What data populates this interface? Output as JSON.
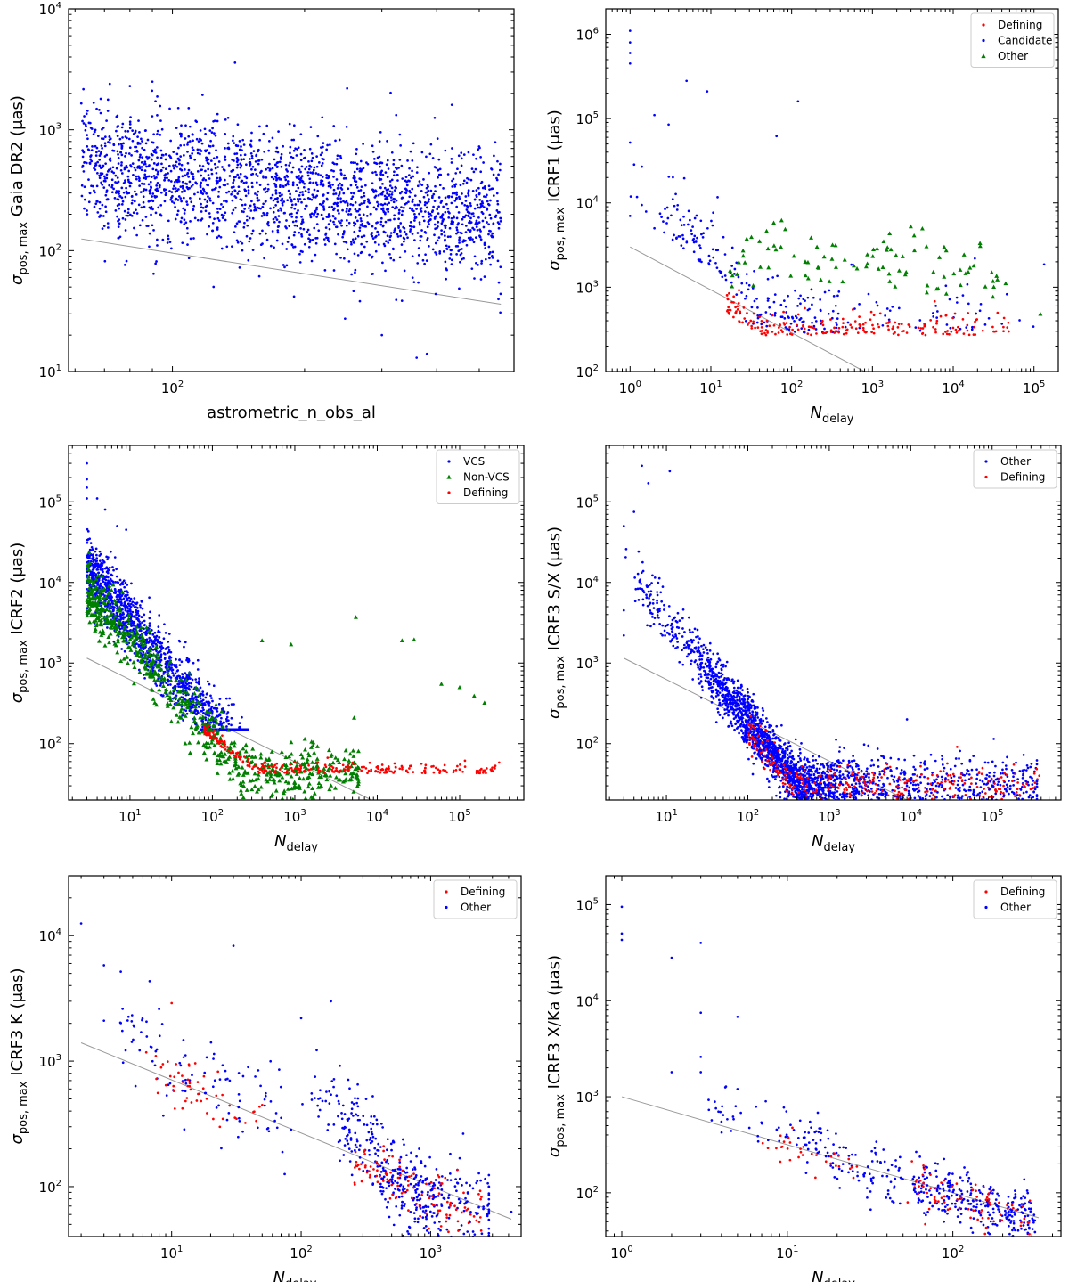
{
  "colors": {
    "defining": "#ff0000",
    "candidate": "#0000ff",
    "other_green": "#008000",
    "vcs": "#0000ff",
    "nonvcs": "#008000",
    "fit_line": "#999999"
  },
  "chart_data": [
    {
      "id": "gaia",
      "type": "scatter",
      "xlabel": "astrometric_n_obs_al",
      "ylabel": "σpos, max Gaia DR2 (μas)",
      "xscale": "log",
      "yscale": "log",
      "xlim": [
        58,
        600
      ],
      "ylim": [
        10,
        10000
      ],
      "xticks": [
        {
          "v": 100,
          "label": "10",
          "exp": "2"
        }
      ],
      "yticks": [
        {
          "v": 10,
          "label": "10",
          "exp": "1"
        },
        {
          "v": 100,
          "label": "10",
          "exp": "2"
        },
        {
          "v": 1000,
          "label": "10",
          "exp": "3"
        },
        {
          "v": 10000,
          "label": "10",
          "exp": "4"
        }
      ],
      "legend": null,
      "fit_line": [
        [
          62,
          125
        ],
        [
          560,
          36
        ]
      ],
      "series": [
        {
          "color_key": "candidate",
          "marker": "dot",
          "n": 2200,
          "x_range": [
            62,
            560
          ],
          "y_center": [
            500,
            180
          ],
          "y_spread": 0.42,
          "seed": 11,
          "extra": [
            [
              62,
              1650
            ],
            [
              72,
              2400
            ],
            [
              80,
              2300
            ],
            [
              90,
              2500
            ],
            [
              70,
              160
            ],
            [
              380,
              14
            ],
            [
              360,
              13
            ],
            [
              300,
              20
            ],
            [
              250,
              2200
            ],
            [
              510,
              330
            ],
            [
              560,
              185
            ],
            [
              530,
              260
            ]
          ]
        }
      ]
    },
    {
      "id": "icrf1",
      "type": "scatter",
      "xlabel": "N",
      "xlabel_sub": "delay",
      "ylabel": "σpos, max ICRF1 (μas)",
      "xscale": "log",
      "yscale": "log",
      "xlim": [
        0.5,
        200000
      ],
      "ylim": [
        100,
        2000000
      ],
      "xticks": [
        {
          "v": 1,
          "label": "10",
          "exp": "0"
        },
        {
          "v": 10,
          "label": "10",
          "exp": "1"
        },
        {
          "v": 100,
          "label": "10",
          "exp": "2"
        },
        {
          "v": 1000,
          "label": "10",
          "exp": "3"
        },
        {
          "v": 10000,
          "label": "10",
          "exp": "4"
        },
        {
          "v": 100000,
          "label": "10",
          "exp": "5"
        }
      ],
      "yticks": [
        {
          "v": 100,
          "label": "10",
          "exp": "2"
        },
        {
          "v": 1000,
          "label": "10",
          "exp": "3"
        },
        {
          "v": 10000,
          "label": "10",
          "exp": "4"
        },
        {
          "v": 100000,
          "label": "10",
          "exp": "5"
        },
        {
          "v": 1000000,
          "label": "10",
          "exp": "6"
        }
      ],
      "legend": [
        {
          "label": "Defining",
          "color_key": "defining",
          "marker": "dot"
        },
        {
          "label": "Candidate",
          "color_key": "candidate",
          "marker": "dot"
        },
        {
          "label": "Other",
          "color_key": "other_green",
          "marker": "tri"
        }
      ],
      "fit_line": [
        [
          1,
          3000
        ],
        [
          800,
          100
        ]
      ],
      "series": [
        {
          "color_key": "candidate",
          "marker": "dot",
          "n": 260,
          "curve": "icrf1cand",
          "seed": 21,
          "extra": [
            [
              1,
              1100000
            ],
            [
              1,
              800000
            ],
            [
              1,
              600000
            ],
            [
              1,
              450000
            ],
            [
              1,
              52000
            ],
            [
              5,
              280000
            ],
            [
              9,
              210000
            ],
            [
              120,
              160000
            ],
            [
              2,
              110000
            ],
            [
              3,
              85000
            ],
            [
              65,
              62000
            ],
            [
              1,
              7000
            ],
            [
              2,
              5000
            ],
            [
              4,
              4000
            ]
          ]
        },
        {
          "color_key": "defining",
          "marker": "dot",
          "n": 210,
          "curve": "icrf1def",
          "seed": 22
        },
        {
          "color_key": "other_green",
          "marker": "tri",
          "n": 95,
          "curve": "icrf1other",
          "seed": 23,
          "extra": [
            [
              120000,
              480
            ],
            [
              75,
              6200
            ],
            [
              60,
              5800
            ],
            [
              40,
              3500
            ]
          ]
        }
      ]
    },
    {
      "id": "icrf2",
      "type": "scatter",
      "xlabel": "N",
      "xlabel_sub": "delay",
      "ylabel": "σpos, max ICRF2 (μas)",
      "xscale": "log",
      "yscale": "log",
      "xlim": [
        1.8,
        600000
      ],
      "ylim": [
        20,
        500000
      ],
      "xticks": [
        {
          "v": 10,
          "label": "10",
          "exp": "1"
        },
        {
          "v": 100,
          "label": "10",
          "exp": "2"
        },
        {
          "v": 1000,
          "label": "10",
          "exp": "3"
        },
        {
          "v": 10000,
          "label": "10",
          "exp": "4"
        },
        {
          "v": 100000,
          "label": "10",
          "exp": "5"
        }
      ],
      "yticks": [
        {
          "v": 100,
          "label": "10",
          "exp": "2"
        },
        {
          "v": 1000,
          "label": "10",
          "exp": "3"
        },
        {
          "v": 10000,
          "label": "10",
          "exp": "4"
        },
        {
          "v": 100000,
          "label": "10",
          "exp": "5"
        }
      ],
      "legend": [
        {
          "label": "VCS",
          "color_key": "vcs",
          "marker": "dot"
        },
        {
          "label": "Non-VCS",
          "color_key": "nonvcs",
          "marker": "tri"
        },
        {
          "label": "Defining",
          "color_key": "defining",
          "marker": "dot"
        }
      ],
      "fit_line": [
        [
          3,
          1150
        ],
        [
          8500,
          20
        ]
      ],
      "series": [
        {
          "color_key": "vcs",
          "marker": "dot",
          "n": 1500,
          "curve": "icrf2vcs",
          "seed": 31,
          "extra": [
            [
              3,
              300000
            ],
            [
              3,
              190000
            ],
            [
              3,
              150000
            ],
            [
              3,
              110000
            ],
            [
              4,
              110000
            ],
            [
              5,
              80000
            ],
            [
              7,
              50000
            ],
            [
              9,
              45000
            ]
          ]
        },
        {
          "color_key": "nonvcs",
          "marker": "tri",
          "n": 700,
          "curve": "icrf2non",
          "seed": 32,
          "extra": [
            [
              400,
              1900
            ],
            [
              900,
              1700
            ],
            [
              5500,
              3700
            ],
            [
              20000,
              1900
            ],
            [
              28000,
              1950
            ],
            [
              60000,
              550
            ],
            [
              100000,
              500
            ],
            [
              200000,
              320
            ],
            [
              150000,
              390
            ]
          ]
        },
        {
          "color_key": "defining",
          "marker": "dot",
          "n": 300,
          "curve": "icrf2def",
          "seed": 33
        }
      ]
    },
    {
      "id": "icrf3sx",
      "type": "scatter",
      "xlabel": "N",
      "xlabel_sub": "delay",
      "ylabel": "σpos, max ICRF3 S/X (μas)",
      "xscale": "log",
      "yscale": "log",
      "xlim": [
        1.8,
        700000
      ],
      "ylim": [
        20,
        500000
      ],
      "xticks": [
        {
          "v": 10,
          "label": "10",
          "exp": "1"
        },
        {
          "v": 100,
          "label": "10",
          "exp": "2"
        },
        {
          "v": 1000,
          "label": "10",
          "exp": "3"
        },
        {
          "v": 10000,
          "label": "10",
          "exp": "4"
        },
        {
          "v": 100000,
          "label": "10",
          "exp": "5"
        }
      ],
      "yticks": [
        {
          "v": 100,
          "label": "10",
          "exp": "2"
        },
        {
          "v": 1000,
          "label": "10",
          "exp": "3"
        },
        {
          "v": 10000,
          "label": "10",
          "exp": "4"
        },
        {
          "v": 100000,
          "label": "10",
          "exp": "5"
        }
      ],
      "legend": [
        {
          "label": "Other",
          "color_key": "candidate",
          "marker": "dot"
        },
        {
          "label": "Defining",
          "color_key": "defining",
          "marker": "dot"
        }
      ],
      "fit_line": [
        [
          3,
          1150
        ],
        [
          9000,
          20
        ]
      ],
      "series": [
        {
          "color_key": "candidate",
          "marker": "dot",
          "n": 2300,
          "curve": "icrf3sxother",
          "seed": 41,
          "extra": [
            [
              5,
              280000
            ],
            [
              11,
              240000
            ],
            [
              6,
              170000
            ],
            [
              4,
              75000
            ],
            [
              3,
              50000
            ],
            [
              3,
              2200
            ],
            [
              3,
              4500
            ],
            [
              9000,
              200
            ]
          ]
        },
        {
          "color_key": "defining",
          "marker": "dot",
          "n": 300,
          "curve": "icrf3sxdef",
          "seed": 42
        }
      ]
    },
    {
      "id": "icrf3k",
      "type": "scatter",
      "xlabel": "N",
      "xlabel_sub": "delay",
      "ylabel": "σpos, max ICRF3 K (μas)",
      "xscale": "log",
      "yscale": "log",
      "xlim": [
        1.6,
        5000
      ],
      "ylim": [
        40,
        30000
      ],
      "xticks": [
        {
          "v": 10,
          "label": "10",
          "exp": "1"
        },
        {
          "v": 100,
          "label": "10",
          "exp": "2"
        },
        {
          "v": 1000,
          "label": "10",
          "exp": "3"
        }
      ],
      "yticks": [
        {
          "v": 100,
          "label": "10",
          "exp": "2"
        },
        {
          "v": 1000,
          "label": "10",
          "exp": "3"
        },
        {
          "v": 10000,
          "label": "10",
          "exp": "4"
        }
      ],
      "legend": [
        {
          "label": "Defining",
          "color_key": "defining",
          "marker": "dot"
        },
        {
          "label": "Other",
          "color_key": "candidate",
          "marker": "dot"
        }
      ],
      "fit_line": [
        [
          2,
          1400
        ],
        [
          4200,
          55
        ]
      ],
      "series": [
        {
          "color_key": "candidate",
          "marker": "dot",
          "n": 520,
          "curve": "icrf3kother",
          "seed": 51,
          "extra": [
            [
              2,
              12500
            ],
            [
              3,
              5800
            ],
            [
              30,
              8300
            ],
            [
              3,
              2100
            ],
            [
              8,
              2600
            ],
            [
              170,
              3000
            ],
            [
              100,
              2200
            ],
            [
              4200,
              63
            ]
          ]
        },
        {
          "color_key": "defining",
          "marker": "dot",
          "n": 170,
          "curve": "icrf3kdef",
          "seed": 52,
          "extra": [
            [
              10,
              2900
            ]
          ]
        }
      ]
    },
    {
      "id": "icrf3xka",
      "type": "scatter",
      "xlabel": "N",
      "xlabel_sub": "delay",
      "ylabel": "σpos, max ICRF3 X/Ka (μas)",
      "xscale": "log",
      "yscale": "log",
      "xlim": [
        0.8,
        450
      ],
      "ylim": [
        35,
        200000
      ],
      "xticks": [
        {
          "v": 1,
          "label": "10",
          "exp": "0"
        },
        {
          "v": 10,
          "label": "10",
          "exp": "1"
        },
        {
          "v": 100,
          "label": "10",
          "exp": "2"
        }
      ],
      "yticks": [
        {
          "v": 100,
          "label": "10",
          "exp": "2"
        },
        {
          "v": 1000,
          "label": "10",
          "exp": "3"
        },
        {
          "v": 10000,
          "label": "10",
          "exp": "4"
        },
        {
          "v": 100000,
          "label": "10",
          "exp": "5"
        }
      ],
      "legend": [
        {
          "label": "Defining",
          "color_key": "defining",
          "marker": "dot"
        },
        {
          "label": "Other",
          "color_key": "candidate",
          "marker": "dot"
        }
      ],
      "fit_line": [
        [
          1,
          1000
        ],
        [
          330,
          55
        ]
      ],
      "series": [
        {
          "color_key": "candidate",
          "marker": "dot",
          "n": 430,
          "curve": "icrf3xkaother",
          "seed": 61,
          "extra": [
            [
              1,
              95000
            ],
            [
              1,
              50000
            ],
            [
              1,
              43000
            ],
            [
              3,
              40000
            ],
            [
              2,
              28000
            ],
            [
              3,
              7500
            ],
            [
              5,
              6800
            ],
            [
              3,
              2600
            ],
            [
              2,
              1800
            ],
            [
              3,
              1800
            ],
            [
              5,
              1200
            ],
            [
              4,
              550
            ]
          ]
        },
        {
          "color_key": "defining",
          "marker": "dot",
          "n": 110,
          "curve": "icrf3xkadef",
          "seed": 62
        }
      ]
    }
  ]
}
